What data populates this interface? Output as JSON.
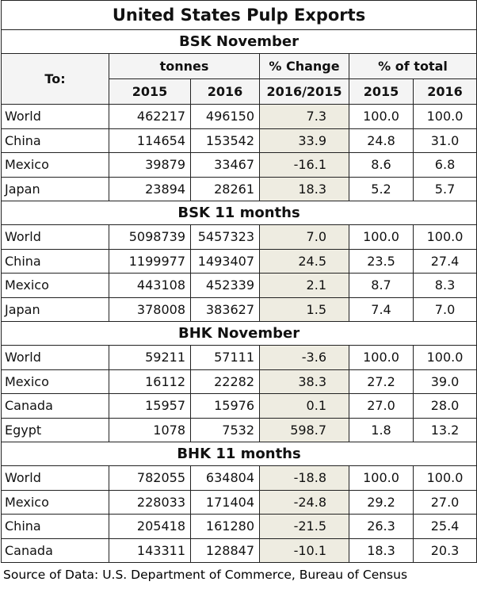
{
  "title": "United States Pulp Exports",
  "header": {
    "to": "To:",
    "tonnes": "tonnes",
    "pct_change": "% Change",
    "pct_total": "% of total",
    "years": [
      "2015",
      "2016",
      "2016/2015",
      "2015",
      "2016"
    ]
  },
  "sections": [
    {
      "title": "BSK November",
      "rows": [
        [
          "World",
          "462217",
          "496150",
          "7.3",
          "100.0",
          "100.0"
        ],
        [
          "China",
          "114654",
          "153542",
          "33.9",
          "24.8",
          "31.0"
        ],
        [
          "Mexico",
          "39879",
          "33467",
          "-16.1",
          "8.6",
          "6.8"
        ],
        [
          "Japan",
          "23894",
          "28261",
          "18.3",
          "5.2",
          "5.7"
        ]
      ]
    },
    {
      "title": "BSK 11 months",
      "rows": [
        [
          "World",
          "5098739",
          "5457323",
          "7.0",
          "100.0",
          "100.0"
        ],
        [
          "China",
          "1199977",
          "1493407",
          "24.5",
          "23.5",
          "27.4"
        ],
        [
          "Mexico",
          "443108",
          "452339",
          "2.1",
          "8.7",
          "8.3"
        ],
        [
          "Japan",
          "378008",
          "383627",
          "1.5",
          "7.4",
          "7.0"
        ]
      ]
    },
    {
      "title": "BHK November",
      "rows": [
        [
          "World",
          "59211",
          "57111",
          "-3.6",
          "100.0",
          "100.0"
        ],
        [
          "Mexico",
          "16112",
          "22282",
          "38.3",
          "27.2",
          "39.0"
        ],
        [
          "Canada",
          "15957",
          "15976",
          "0.1",
          "27.0",
          "28.0"
        ],
        [
          "Egypt",
          "1078",
          "7532",
          "598.7",
          "1.8",
          "13.2"
        ]
      ]
    },
    {
      "title": "BHK 11 months",
      "rows": [
        [
          "World",
          "782055",
          "634804",
          "-18.8",
          "100.0",
          "100.0"
        ],
        [
          "Mexico",
          "228033",
          "171404",
          "-24.8",
          "29.2",
          "27.0"
        ],
        [
          "China",
          "205418",
          "161280",
          "-21.5",
          "26.3",
          "25.4"
        ],
        [
          "Canada",
          "143311",
          "128847",
          "-10.1",
          "18.3",
          "20.3"
        ]
      ]
    }
  ],
  "source": "Source of Data: U.S. Department of Commerce, Bureau of Census"
}
